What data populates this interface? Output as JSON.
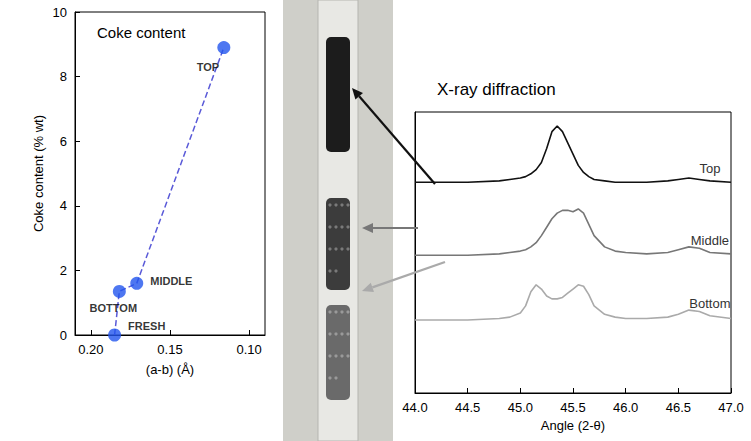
{
  "chart_data": [
    {
      "type": "scatter",
      "title": "Coke content",
      "x_label": "(a-b) (Å)",
      "y_label": "Coke content (% wt)",
      "x": [
        0.185,
        0.182,
        0.171,
        0.116
      ],
      "values": [
        0,
        1.35,
        1.6,
        8.9
      ],
      "labels": [
        "FRESH",
        "BOTTOM",
        "MIDDLE",
        "TOP"
      ],
      "color": "#2255ee",
      "marker": "circle",
      "line_style": "dashed",
      "xlim": [
        0.21,
        0.09
      ],
      "xticks": [
        {
          "value": 0.2,
          "label": "0.20"
        },
        {
          "value": 0.15,
          "label": "0.15"
        },
        {
          "value": 0.1,
          "label": "0.10"
        }
      ],
      "ylim": [
        0,
        10
      ],
      "yticks": [
        0,
        2,
        4,
        6,
        8,
        10
      ],
      "grid": false
    },
    {
      "type": "line",
      "title": "X-ray diffraction",
      "x_label": "Angle (2-θ)",
      "x": [
        44.0,
        44.5,
        44.8,
        44.9,
        45.0,
        45.05,
        45.1,
        45.15,
        45.2,
        45.25,
        45.3,
        45.35,
        45.4,
        45.45,
        45.5,
        45.55,
        45.6,
        45.65,
        45.7,
        45.8,
        45.9,
        46.0,
        46.2,
        46.4,
        46.5,
        46.6,
        46.7,
        46.8,
        47.0
      ],
      "series": [
        {
          "name": "Top",
          "color": "#111111",
          "values": [
            7.5,
            7.5,
            7.55,
            7.6,
            7.65,
            7.7,
            7.8,
            7.95,
            8.2,
            8.7,
            9.3,
            9.5,
            9.3,
            8.9,
            8.5,
            8.1,
            7.85,
            7.7,
            7.6,
            7.55,
            7.5,
            7.5,
            7.5,
            7.55,
            7.6,
            7.65,
            7.6,
            7.55,
            7.5
          ]
        },
        {
          "name": "Middle",
          "color": "#777777",
          "values": [
            4.9,
            4.9,
            4.95,
            5.0,
            5.05,
            5.1,
            5.2,
            5.35,
            5.6,
            5.9,
            6.2,
            6.4,
            6.5,
            6.5,
            6.45,
            6.55,
            6.4,
            6.0,
            5.6,
            5.2,
            5.05,
            5.0,
            4.95,
            5.0,
            5.1,
            5.2,
            5.15,
            5.0,
            4.95
          ]
        },
        {
          "name": "Bottom",
          "color": "#aaaaaa",
          "values": [
            2.6,
            2.6,
            2.65,
            2.7,
            2.85,
            3.1,
            3.6,
            3.85,
            3.7,
            3.45,
            3.35,
            3.35,
            3.4,
            3.55,
            3.7,
            3.85,
            3.8,
            3.5,
            3.1,
            2.8,
            2.7,
            2.65,
            2.65,
            2.7,
            2.8,
            2.95,
            2.9,
            2.75,
            2.65
          ]
        }
      ],
      "xlim": [
        44.0,
        47.0
      ],
      "xticks": [
        {
          "value": 44.0,
          "label": "44.0"
        },
        {
          "value": 44.5,
          "label": "44.5"
        },
        {
          "value": 45.0,
          "label": "45.0"
        },
        {
          "value": 45.5,
          "label": "45.5"
        },
        {
          "value": 46.0,
          "label": "46.0"
        },
        {
          "value": 46.5,
          "label": "46.5"
        },
        {
          "value": 47.0,
          "label": "47.0"
        }
      ],
      "ylim": [
        0,
        10
      ],
      "tick_labels": "x",
      "grid": false
    }
  ]
}
